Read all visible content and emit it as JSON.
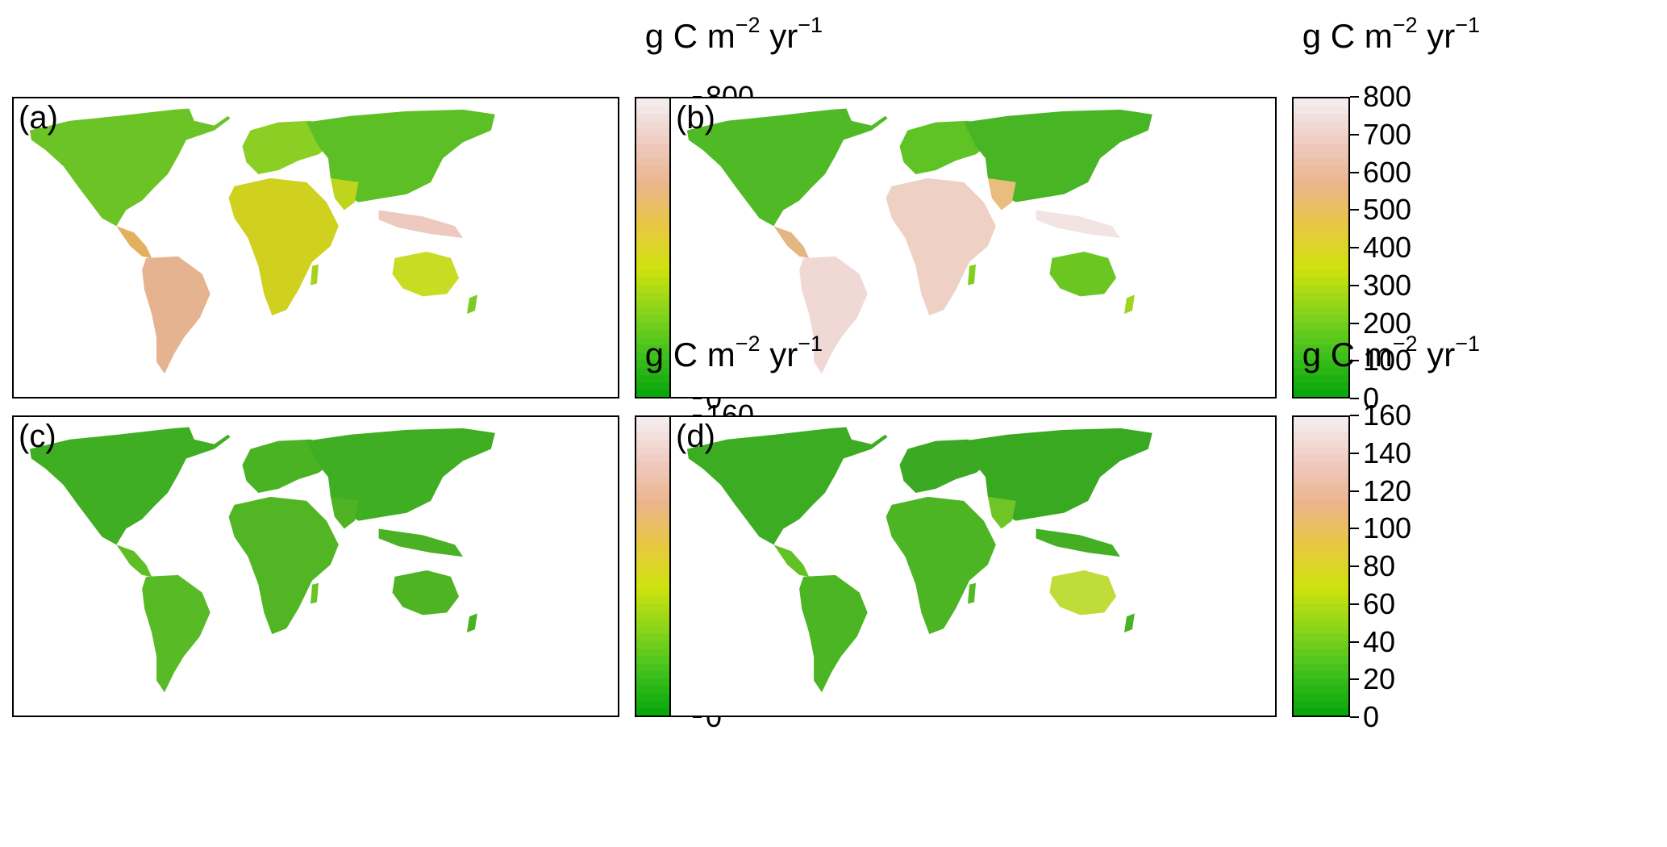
{
  "unit": {
    "base": "g C m",
    "exp1": "−2",
    "mid": " yr",
    "exp2": "−1"
  },
  "colors": {
    "scale": [
      "#0aa70a",
      "#43c21e",
      "#8ad51a",
      "#cfe20f",
      "#e8c840",
      "#ebb48a",
      "#efc9c0",
      "#f4ecec"
    ],
    "land_low": "#3cad22",
    "land_mid": "#7fcb2c",
    "land_high": "#e6b08a"
  },
  "panels": [
    {
      "id": "a",
      "label": "(a)",
      "ticks": [
        "0",
        "100",
        "200",
        "300",
        "400",
        "500",
        "600",
        "700",
        "800"
      ],
      "scale_max": 800
    },
    {
      "id": "b",
      "label": "(b)",
      "ticks": [
        "0",
        "100",
        "200",
        "300",
        "400",
        "500",
        "600",
        "700",
        "800"
      ],
      "scale_max": 800
    },
    {
      "id": "c",
      "label": "(c)",
      "ticks": [
        "0",
        "20",
        "40",
        "60",
        "80",
        "100",
        "120",
        "140",
        "160"
      ],
      "scale_max": 160
    },
    {
      "id": "d",
      "label": "(d)",
      "ticks": [
        "0",
        "20",
        "40",
        "60",
        "80",
        "100",
        "120",
        "140",
        "160"
      ],
      "scale_max": 160
    }
  ]
}
